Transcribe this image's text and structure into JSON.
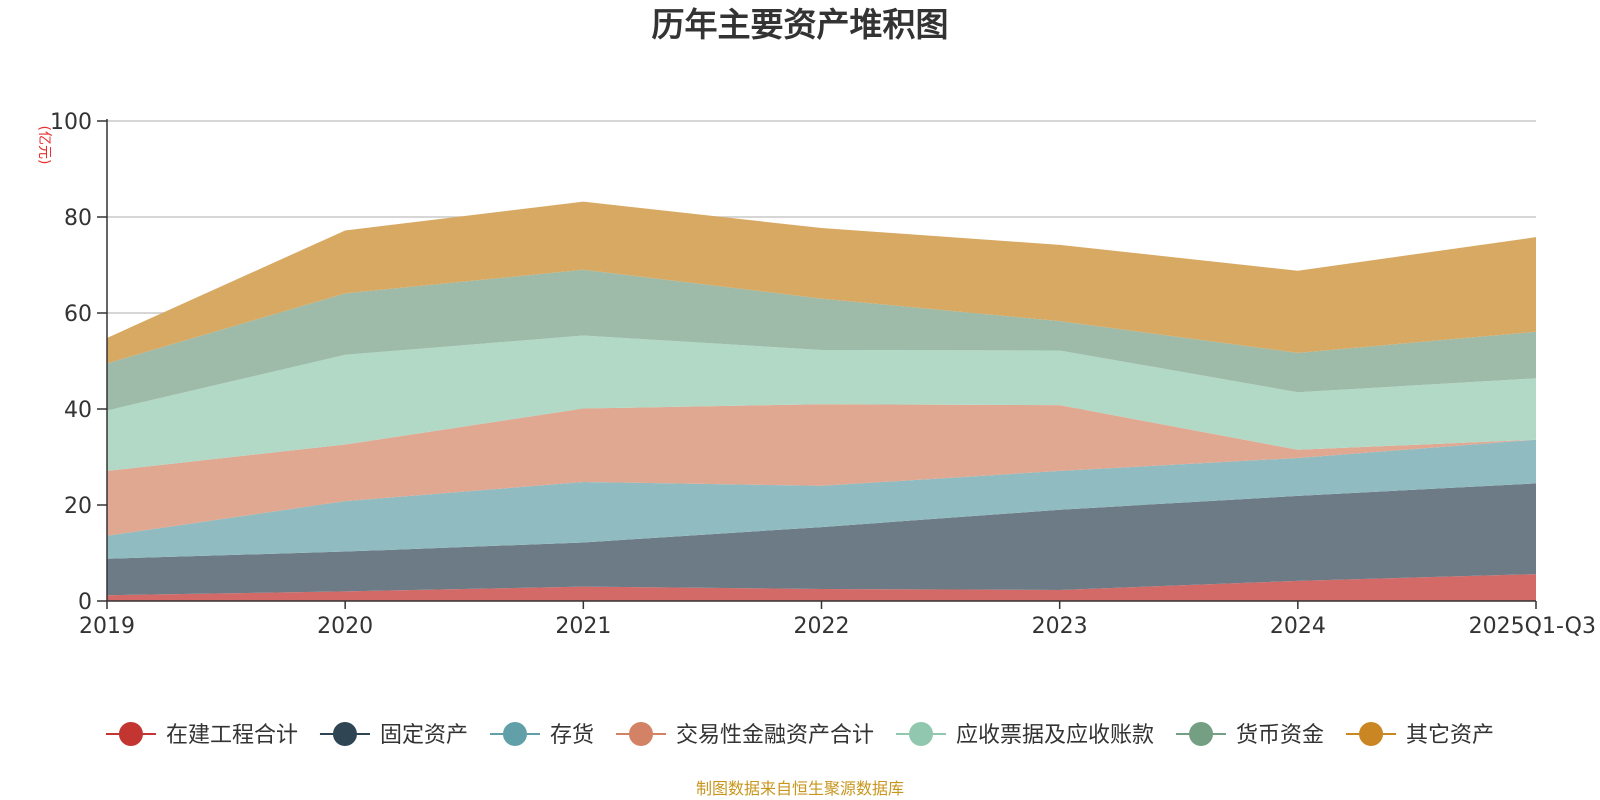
{
  "chart_data": {
    "type": "area",
    "stacked": true,
    "title": "历年主要资产堆积图",
    "ylabel": "(亿元)",
    "xlabel": "",
    "ylim": [
      0,
      100
    ],
    "yticks": [
      0,
      20,
      40,
      60,
      80,
      100
    ],
    "grid": true,
    "legend_position": "bottom",
    "categories": [
      "2019",
      "2020",
      "2021",
      "2022",
      "2023",
      "2024",
      "2025Q1-Q3"
    ],
    "series": [
      {
        "name": "在建工程合计",
        "color": "#c23531",
        "fill": "#d46a68",
        "values": [
          1.2,
          2.0,
          3.0,
          2.5,
          2.3,
          4.2,
          5.6
        ]
      },
      {
        "name": "固定资产",
        "color": "#2f4554",
        "fill": "#6d7b86",
        "values": [
          7.6,
          8.3,
          9.2,
          12.9,
          16.7,
          17.7,
          18.9
        ]
      },
      {
        "name": "存货",
        "color": "#61a0a8",
        "fill": "#90bcc1",
        "values": [
          4.8,
          10.5,
          12.6,
          8.6,
          8.1,
          7.9,
          9.1
        ]
      },
      {
        "name": "交易性金融资产合计",
        "color": "#d48265",
        "fill": "#e0a791",
        "values": [
          13.5,
          11.8,
          15.3,
          17.0,
          13.7,
          1.7,
          0.0
        ]
      },
      {
        "name": "应收票据及应收账款",
        "color": "#91c7ae",
        "fill": "#b2d8c6",
        "values": [
          12.6,
          18.7,
          15.2,
          11.3,
          11.4,
          12.0,
          12.8
        ]
      },
      {
        "name": "货币资金",
        "color": "#749f83",
        "fill": "#9dbba8",
        "values": [
          9.8,
          12.8,
          13.7,
          10.7,
          6.1,
          8.2,
          9.7
        ]
      },
      {
        "name": "其它资产",
        "color": "#ca8622",
        "fill": "#d8a963",
        "values": [
          5.3,
          13.1,
          14.2,
          14.7,
          15.9,
          17.1,
          19.7
        ]
      }
    ]
  },
  "source_note": "制图数据来自恒生聚源数据库"
}
